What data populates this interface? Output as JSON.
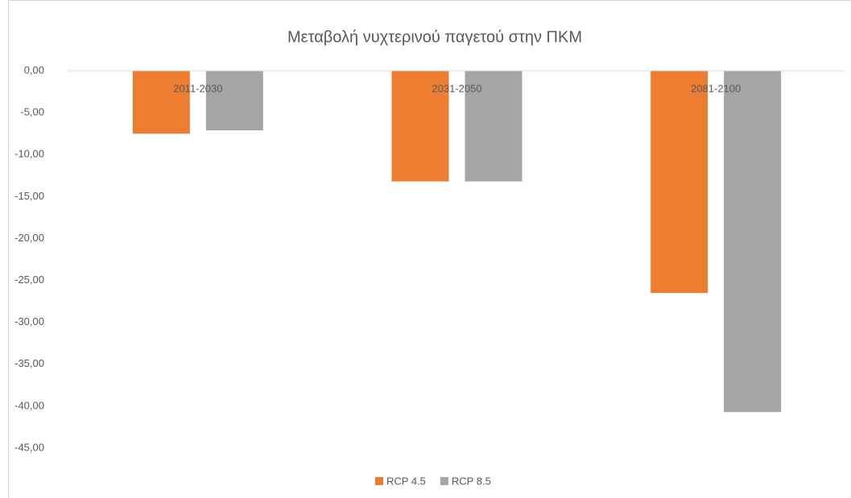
{
  "chart_data": {
    "type": "bar",
    "title": "Μεταβολή νυχτερινού παγετού στην ΠΚΜ",
    "categories": [
      "2011-2030",
      "2031-2050",
      "2081-2100"
    ],
    "series": [
      {
        "name": "RCP 4.5",
        "color": "#ed7d31",
        "values": [
          -7.5,
          -13.2,
          -26.5
        ]
      },
      {
        "name": "RCP 8.5",
        "color": "#a5a5a5",
        "values": [
          -7.1,
          -13.2,
          -40.7
        ]
      }
    ],
    "ylim": [
      -45,
      0
    ],
    "yticks": [
      {
        "value": 0,
        "label": "0,00"
      },
      {
        "value": -5,
        "label": "-5,00"
      },
      {
        "value": -10,
        "label": "-10,00"
      },
      {
        "value": -15,
        "label": "-15,00"
      },
      {
        "value": -20,
        "label": "-20,00"
      },
      {
        "value": -25,
        "label": "-25,00"
      },
      {
        "value": -30,
        "label": "-30,00"
      },
      {
        "value": -35,
        "label": "-35,00"
      },
      {
        "value": -40,
        "label": "-40,00"
      },
      {
        "value": -45,
        "label": "-45,00"
      }
    ],
    "legend": "bottom"
  }
}
